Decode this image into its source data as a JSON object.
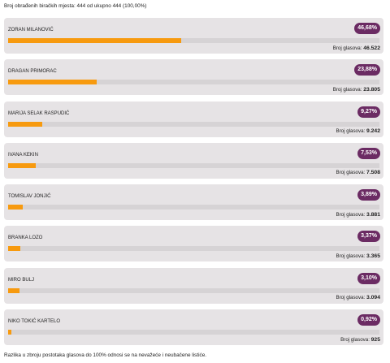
{
  "summary": "Broj obrađenih biračkih mjesta: 444 od ukupno 444 (100,00%)",
  "votes_label": "Broj glasova:",
  "colors": {
    "bar_fill": "#f79a0f",
    "badge": "#6b2b63",
    "card": "#e6e3e5"
  },
  "candidates": [
    {
      "name": "ZORAN MILANOVIĆ",
      "percent": "46,68%",
      "share": 46.68,
      "votes": "46.522"
    },
    {
      "name": "DRAGAN PRIMORAC",
      "percent": "23,88%",
      "share": 23.88,
      "votes": "23.805"
    },
    {
      "name": "MARIJA SELAK RASPUDIĆ",
      "percent": "9,27%",
      "share": 9.27,
      "votes": "9.242"
    },
    {
      "name": "IVANA KEKIN",
      "percent": "7,53%",
      "share": 7.53,
      "votes": "7.508"
    },
    {
      "name": "TOMISLAV JONJIĆ",
      "percent": "3,89%",
      "share": 3.89,
      "votes": "3.881"
    },
    {
      "name": "BRANKA LOZO",
      "percent": "3,37%",
      "share": 3.37,
      "votes": "3.365"
    },
    {
      "name": "MIRO BULJ",
      "percent": "3,10%",
      "share": 3.1,
      "votes": "3.094"
    },
    {
      "name": "NIKO TOKIĆ KARTELO",
      "percent": "0,92%",
      "share": 0.92,
      "votes": "925"
    }
  ],
  "footnote": "Razlika u zbroju postotaka glasova do 100% odnosi se na nevažeće i neubačene listiće."
}
